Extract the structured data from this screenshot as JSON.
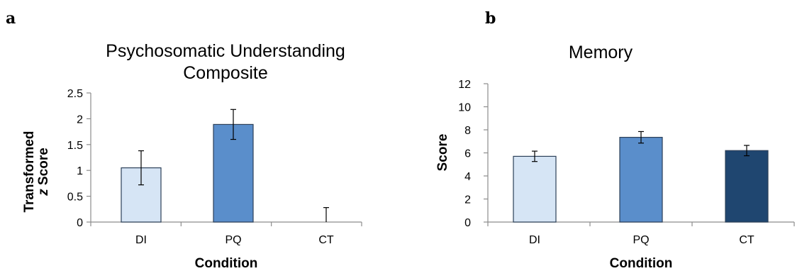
{
  "figure": {
    "panels": [
      {
        "letter": "a"
      },
      {
        "letter": "b"
      }
    ]
  },
  "colors": {
    "DI": "#d6e5f5",
    "PQ": "#5a8ecb",
    "CT": "#1f4670",
    "axis": "#8c8c8c"
  },
  "chart_data": [
    {
      "type": "bar",
      "title": [
        "Psychosomatic Understanding",
        "Composite"
      ],
      "xlabel": "Condition",
      "ylabel": [
        "Transformed",
        "z Score"
      ],
      "categories": [
        "DI",
        "PQ",
        "CT"
      ],
      "values": [
        1.05,
        1.89,
        0
      ],
      "error": [
        0.33,
        0.29,
        0.28
      ],
      "yticks": [
        "0",
        "0.5",
        "1",
        "1.5",
        "2",
        "2.5"
      ],
      "ylim": [
        0,
        2.5
      ],
      "grid": false,
      "legend": "none"
    },
    {
      "type": "bar",
      "title": [
        "Memory"
      ],
      "xlabel": "Condition",
      "ylabel": [
        "Score"
      ],
      "categories": [
        "DI",
        "PQ",
        "CT"
      ],
      "values": [
        5.7,
        7.35,
        6.2
      ],
      "error": [
        0.45,
        0.5,
        0.45
      ],
      "yticks": [
        "0",
        "2",
        "4",
        "6",
        "8",
        "10",
        "12"
      ],
      "ylim": [
        0,
        12
      ],
      "grid": false,
      "legend": "none"
    }
  ]
}
